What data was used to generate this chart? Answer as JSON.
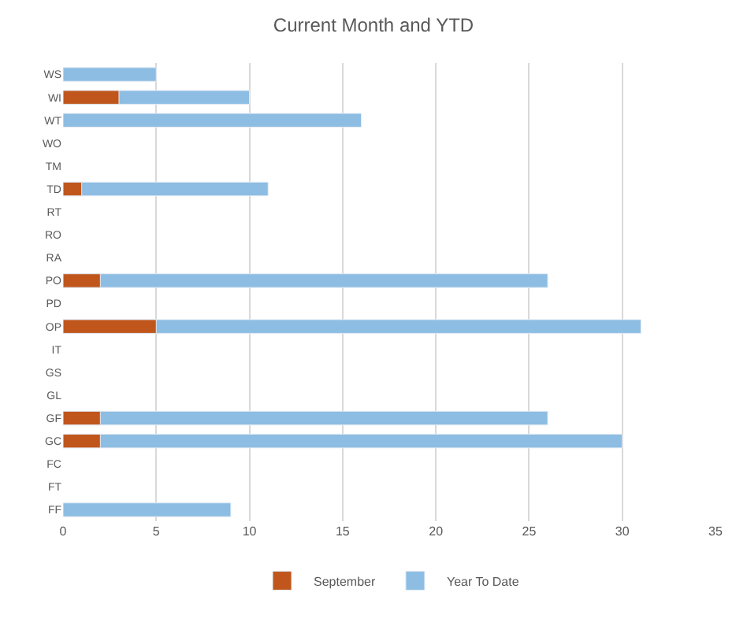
{
  "chart_data": {
    "type": "bar",
    "orientation": "horizontal",
    "title": "Current Month and YTD",
    "categories": [
      "WS",
      "WI",
      "WT",
      "WO",
      "TM",
      "TD",
      "RT",
      "RO",
      "RA",
      "PO",
      "PD",
      "OP",
      "IT",
      "GS",
      "GL",
      "GF",
      "GC",
      "FC",
      "FT",
      "FF"
    ],
    "series": [
      {
        "name": "Year To Date",
        "color": "#8dbde2",
        "values": [
          5,
          10,
          16,
          null,
          null,
          11,
          null,
          null,
          null,
          26,
          null,
          31,
          null,
          null,
          null,
          26,
          30,
          null,
          null,
          9
        ]
      },
      {
        "name": "September",
        "color": "#c0561c",
        "values": [
          null,
          3,
          null,
          null,
          null,
          1,
          null,
          null,
          null,
          2,
          null,
          5,
          null,
          null,
          null,
          2,
          2,
          null,
          null,
          null
        ]
      }
    ],
    "xlim": [
      0,
      35
    ],
    "xticks": [
      0,
      5,
      10,
      15,
      20,
      25,
      30,
      35
    ],
    "grid": "x",
    "legend": "bottom"
  }
}
